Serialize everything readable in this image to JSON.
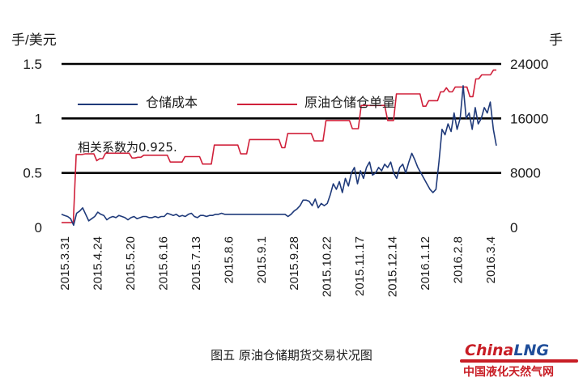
{
  "chart_data": {
    "type": "line",
    "y_left_label": "手/美元",
    "y_right_label": "手",
    "y_left_ticks": [
      "1.5",
      "1",
      "0.5",
      "0"
    ],
    "y_right_ticks": [
      "24000",
      "16000",
      "8000",
      "0"
    ],
    "y_left_lim": [
      0,
      1.5
    ],
    "y_right_lim": [
      0,
      24000
    ],
    "grid": "horizontal-lines",
    "legend_position": "top-left",
    "x_tick_labels": [
      "2015.3.31",
      "2015.4.24",
      "2015.5.20",
      "2015.6.16",
      "2015.7.13",
      "2015.8.6",
      "2015.9.1",
      "2015.9.28",
      "2015.10.22",
      "2015.11.17",
      "2015.12.14",
      "2016.1.12",
      "2016.2.8",
      "2016.3.4"
    ],
    "annotation": "相关系数为0.925.",
    "colors": {
      "cost": "#1f3a7a",
      "volume": "#d0203a",
      "gridline": "#000000"
    },
    "series": [
      {
        "name": "仓储成本",
        "axis": "left",
        "values": [
          0.12,
          0.11,
          0.1,
          0.08,
          0.02,
          0.13,
          0.15,
          0.18,
          0.12,
          0.06,
          0.08,
          0.1,
          0.14,
          0.12,
          0.11,
          0.07,
          0.09,
          0.1,
          0.09,
          0.11,
          0.1,
          0.09,
          0.07,
          0.09,
          0.1,
          0.08,
          0.09,
          0.1,
          0.1,
          0.09,
          0.09,
          0.1,
          0.09,
          0.1,
          0.1,
          0.13,
          0.12,
          0.11,
          0.12,
          0.1,
          0.11,
          0.1,
          0.12,
          0.13,
          0.1,
          0.09,
          0.11,
          0.11,
          0.1,
          0.11,
          0.11,
          0.12,
          0.12,
          0.13,
          0.12,
          0.12,
          0.12,
          0.12,
          0.12,
          0.12,
          0.12,
          0.12,
          0.12,
          0.12,
          0.12,
          0.12,
          0.12,
          0.12,
          0.12,
          0.12,
          0.12,
          0.12,
          0.12,
          0.12,
          0.12,
          0.1,
          0.12,
          0.15,
          0.17,
          0.2,
          0.25,
          0.25,
          0.24,
          0.2,
          0.26,
          0.18,
          0.22,
          0.2,
          0.22,
          0.3,
          0.4,
          0.35,
          0.42,
          0.32,
          0.45,
          0.38,
          0.5,
          0.55,
          0.4,
          0.52,
          0.45,
          0.55,
          0.6,
          0.48,
          0.5,
          0.55,
          0.52,
          0.58,
          0.55,
          0.6,
          0.5,
          0.45,
          0.55,
          0.58,
          0.5,
          0.6,
          0.68,
          0.62,
          0.55,
          0.5,
          0.45,
          0.4,
          0.35,
          0.32,
          0.35,
          0.6,
          0.9,
          0.85,
          0.95,
          0.88,
          1.05,
          0.9,
          1.0,
          1.3,
          1.0,
          1.05,
          0.9,
          1.1,
          0.95,
          1.0,
          1.1,
          1.05,
          1.15,
          0.9,
          0.75
        ]
      },
      {
        "name": "原油仓储仓单量",
        "axis": "right",
        "values": [
          700,
          700,
          700,
          700,
          700,
          10700,
          10700,
          10700,
          10800,
          10800,
          10800,
          10800,
          9800,
          10100,
          10100,
          10900,
          10900,
          10900,
          10900,
          10900,
          10900,
          10900,
          10900,
          10900,
          10200,
          10200,
          10300,
          10300,
          10600,
          10600,
          10600,
          10600,
          10600,
          10600,
          10600,
          10600,
          10600,
          9600,
          9600,
          9600,
          9600,
          9600,
          10400,
          10400,
          10400,
          10400,
          10400,
          10400,
          9300,
          9300,
          9300,
          9300,
          12100,
          12100,
          12100,
          12100,
          12100,
          12100,
          12100,
          12100,
          12100,
          10800,
          10800,
          10800,
          12900,
          12900,
          12900,
          12900,
          12900,
          12900,
          12900,
          12900,
          12900,
          12900,
          12900,
          11700,
          11700,
          13800,
          13800,
          13800,
          13800,
          13800,
          13800,
          13800,
          13800,
          13800,
          12700,
          12700,
          12700,
          12700,
          15700,
          15700,
          15700,
          15700,
          15700,
          15700,
          15700,
          15700,
          15700,
          14500,
          14500,
          14500,
          17900,
          17900,
          17900,
          17900,
          17900,
          17900,
          17900,
          17900,
          17900,
          15700,
          15700,
          15700,
          19600,
          19600,
          19600,
          19600,
          19600,
          19600,
          19600,
          19600,
          19600,
          17800,
          17800,
          18600,
          18600,
          18600,
          18600,
          19900,
          19900,
          20500,
          19900,
          19900,
          20600,
          20600,
          20600,
          20600,
          20600,
          19200,
          19200,
          21800,
          21800,
          22400,
          22400,
          22400,
          22400,
          23100,
          23100
        ]
      }
    ]
  },
  "caption": "图五  原油仓储期货交易状况图",
  "logo": {
    "top_part1": "China",
    "top_part2": "LNG",
    "bottom": "中国液化天然气网"
  }
}
